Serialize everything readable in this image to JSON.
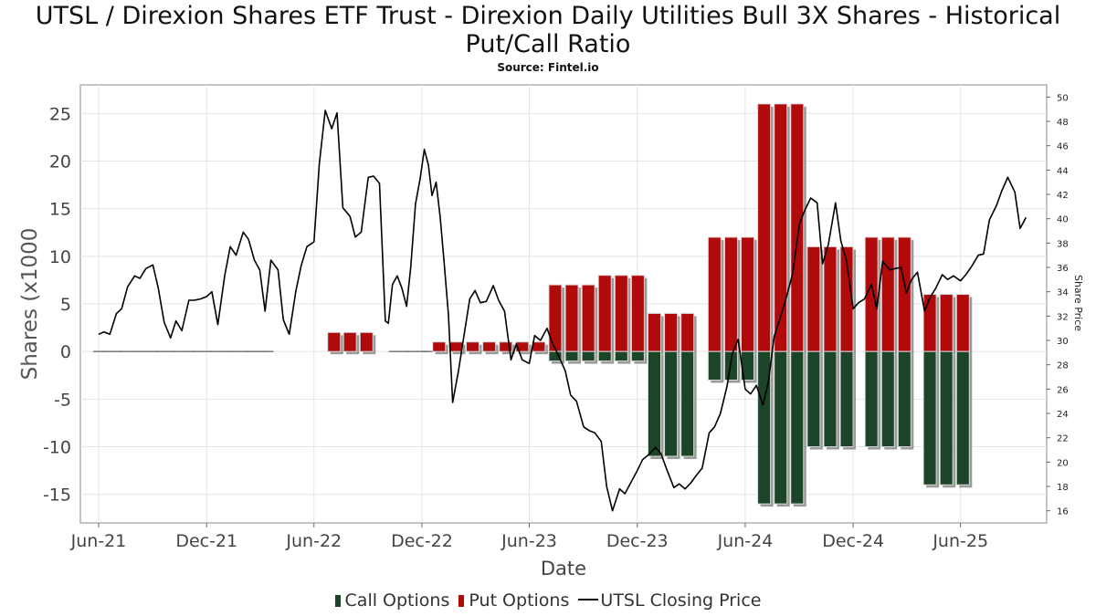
{
  "title": "UTSL / Direxion Shares ETF Trust - Direxion Daily Utilities Bull 3X Shares - Historical Put/Call Ratio",
  "subtitle": "Source: Fintel.io",
  "colors": {
    "call": "#1c4428",
    "put": "#b00a0a",
    "price": "#000000",
    "zero": "#777777"
  },
  "legend": {
    "call": "Call Options",
    "put": "Put Options",
    "price": "UTSL Closing Price"
  },
  "chart_data": {
    "type": "bar",
    "xlabel": "Date",
    "ylabel": "Shares (x1000",
    "y2label": "Share Price",
    "xlim": [
      "2021-05-01",
      "2025-10-25"
    ],
    "ylim": [
      -18,
      28
    ],
    "y2lim": [
      15,
      51
    ],
    "xticks": [
      "2021-06-01",
      "2021-12-01",
      "2022-06-01",
      "2022-12-01",
      "2023-06-01",
      "2023-12-01",
      "2024-06-01",
      "2024-12-01",
      "2025-06-01"
    ],
    "xtick_labels": [
      "Jun-21",
      "Dec-21",
      "Jun-22",
      "Dec-22",
      "Jun-23",
      "Dec-23",
      "Jun-24",
      "Dec-24",
      "Jun-25"
    ],
    "yticks": [
      -15,
      -10,
      -5,
      0,
      5,
      10,
      15,
      20,
      25
    ],
    "ytick_labels": [
      "-15",
      "-10",
      "-5",
      "0",
      "5",
      "10",
      "15",
      "20",
      "25"
    ],
    "y2ticks": [
      16,
      18,
      20,
      22,
      24,
      26,
      28,
      30,
      32,
      34,
      36,
      38,
      40,
      42,
      44,
      46,
      48,
      50
    ],
    "y2tick_labels": [
      "16",
      "18",
      "20",
      "22",
      "24",
      "26",
      "28",
      "30",
      "32",
      "34",
      "36",
      "38",
      "40",
      "42",
      "44",
      "46",
      "48",
      "50"
    ],
    "grid": true,
    "legend_position": "bottom",
    "series": [
      {
        "name": "Put Options",
        "type": "bar",
        "points": [
          [
            "2021-06-01",
            0
          ],
          [
            "2021-06-15",
            0
          ],
          [
            "2021-07-01",
            0
          ],
          [
            "2021-07-15",
            0
          ],
          [
            "2021-08-01",
            0
          ],
          [
            "2021-08-15",
            0
          ],
          [
            "2021-09-01",
            0
          ],
          [
            "2021-09-15",
            0
          ],
          [
            "2021-10-01",
            0
          ],
          [
            "2021-10-15",
            0
          ],
          [
            "2021-11-01",
            0
          ],
          [
            "2021-11-15",
            0
          ],
          [
            "2021-12-01",
            0
          ],
          [
            "2021-12-15",
            0
          ],
          [
            "2022-01-01",
            0
          ],
          [
            "2022-01-15",
            0
          ],
          [
            "2022-02-01",
            0
          ],
          [
            "2022-02-15",
            0
          ],
          [
            "2022-03-01",
            0
          ],
          [
            "2022-03-15",
            0
          ],
          [
            "2022-07-05",
            2
          ],
          [
            "2022-08-01",
            2
          ],
          [
            "2022-08-29",
            2
          ],
          [
            "2022-10-15",
            0
          ],
          [
            "2022-11-01",
            0
          ],
          [
            "2022-11-15",
            0
          ],
          [
            "2022-12-01",
            0
          ],
          [
            "2022-12-10",
            0
          ],
          [
            "2022-12-30",
            1
          ],
          [
            "2023-01-28",
            1
          ],
          [
            "2023-02-25",
            1
          ],
          [
            "2023-03-25",
            1
          ],
          [
            "2023-04-22",
            1
          ],
          [
            "2023-05-20",
            1
          ],
          [
            "2023-06-17",
            1
          ],
          [
            "2023-07-15",
            7
          ],
          [
            "2023-08-12",
            7
          ],
          [
            "2023-09-09",
            7
          ],
          [
            "2023-10-07",
            8
          ],
          [
            "2023-11-04",
            8
          ],
          [
            "2023-12-02",
            8
          ],
          [
            "2023-12-30",
            4
          ],
          [
            "2024-01-27",
            4
          ],
          [
            "2024-02-24",
            4
          ],
          [
            "2024-04-10",
            12
          ],
          [
            "2024-05-08",
            12
          ],
          [
            "2024-06-05",
            12
          ],
          [
            "2024-07-03",
            26
          ],
          [
            "2024-07-31",
            26
          ],
          [
            "2024-08-28",
            26
          ],
          [
            "2024-09-25",
            11
          ],
          [
            "2024-10-23",
            11
          ],
          [
            "2024-11-20",
            11
          ],
          [
            "2025-01-01",
            12
          ],
          [
            "2025-01-29",
            12
          ],
          [
            "2025-02-26",
            12
          ],
          [
            "2025-04-10",
            6
          ],
          [
            "2025-05-08",
            6
          ],
          [
            "2025-06-05",
            6
          ]
        ]
      },
      {
        "name": "Call Options",
        "type": "bar",
        "points": [
          [
            "2023-07-15",
            -1
          ],
          [
            "2023-08-12",
            -1
          ],
          [
            "2023-09-09",
            -1
          ],
          [
            "2023-10-07",
            -1
          ],
          [
            "2023-11-04",
            -1
          ],
          [
            "2023-12-02",
            -1
          ],
          [
            "2023-12-30",
            -11
          ],
          [
            "2024-01-27",
            -11
          ],
          [
            "2024-02-24",
            -11
          ],
          [
            "2024-04-10",
            -3
          ],
          [
            "2024-05-08",
            -3
          ],
          [
            "2024-06-05",
            -3
          ],
          [
            "2024-07-03",
            -16
          ],
          [
            "2024-07-31",
            -16
          ],
          [
            "2024-08-28",
            -16
          ],
          [
            "2024-09-25",
            -10
          ],
          [
            "2024-10-23",
            -10
          ],
          [
            "2024-11-20",
            -10
          ],
          [
            "2025-01-01",
            -10
          ],
          [
            "2025-01-29",
            -10
          ],
          [
            "2025-02-26",
            -10
          ],
          [
            "2025-04-10",
            -14
          ],
          [
            "2025-05-08",
            -14
          ],
          [
            "2025-06-05",
            -14
          ]
        ]
      },
      {
        "name": "UTSL Closing Price",
        "type": "line",
        "axis": "right",
        "points": [
          [
            "2021-06-01",
            30.5
          ],
          [
            "2021-06-10",
            30.7
          ],
          [
            "2021-06-20",
            30.5
          ],
          [
            "2021-07-01",
            32.2
          ],
          [
            "2021-07-10",
            32.6
          ],
          [
            "2021-07-20",
            34.4
          ],
          [
            "2021-08-01",
            35.3
          ],
          [
            "2021-08-10",
            35.1
          ],
          [
            "2021-08-20",
            35.9
          ],
          [
            "2021-09-01",
            36.2
          ],
          [
            "2021-09-10",
            34.3
          ],
          [
            "2021-09-20",
            31.5
          ],
          [
            "2021-10-01",
            30.2
          ],
          [
            "2021-10-10",
            31.6
          ],
          [
            "2021-10-20",
            30.8
          ],
          [
            "2021-11-01",
            33.3
          ],
          [
            "2021-11-10",
            33.3
          ],
          [
            "2021-11-20",
            33.4
          ],
          [
            "2021-12-01",
            33.6
          ],
          [
            "2021-12-10",
            34.0
          ],
          [
            "2021-12-20",
            31.3
          ],
          [
            "2022-01-01",
            35.4
          ],
          [
            "2022-01-10",
            37.7
          ],
          [
            "2022-01-20",
            37.0
          ],
          [
            "2022-02-01",
            38.9
          ],
          [
            "2022-02-10",
            38.3
          ],
          [
            "2022-02-20",
            36.6
          ],
          [
            "2022-03-01",
            35.8
          ],
          [
            "2022-03-10",
            32.4
          ],
          [
            "2022-03-20",
            36.6
          ],
          [
            "2022-04-01",
            35.8
          ],
          [
            "2022-04-10",
            31.7
          ],
          [
            "2022-04-20",
            30.5
          ],
          [
            "2022-05-01",
            34.0
          ],
          [
            "2022-05-10",
            36.1
          ],
          [
            "2022-05-20",
            37.7
          ],
          [
            "2022-06-01",
            38.1
          ],
          [
            "2022-06-10",
            44.5
          ],
          [
            "2022-06-20",
            48.9
          ],
          [
            "2022-07-01",
            47.4
          ],
          [
            "2022-07-10",
            48.7
          ],
          [
            "2022-07-20",
            40.9
          ],
          [
            "2022-08-01",
            40.2
          ],
          [
            "2022-08-10",
            38.5
          ],
          [
            "2022-08-20",
            38.9
          ],
          [
            "2022-09-01",
            43.4
          ],
          [
            "2022-09-10",
            43.5
          ],
          [
            "2022-09-20",
            42.9
          ],
          [
            "2022-09-30",
            31.6
          ],
          [
            "2022-10-05",
            31.4
          ],
          [
            "2022-10-12",
            34.6
          ],
          [
            "2022-10-20",
            35.3
          ],
          [
            "2022-10-28",
            34.3
          ],
          [
            "2022-11-05",
            32.8
          ],
          [
            "2022-11-12",
            36.0
          ],
          [
            "2022-11-20",
            41.2
          ],
          [
            "2022-11-28",
            43.3
          ],
          [
            "2022-12-05",
            45.7
          ],
          [
            "2022-12-12",
            44.4
          ],
          [
            "2022-12-18",
            41.9
          ],
          [
            "2022-12-25",
            43.0
          ],
          [
            "2023-01-01",
            40.1
          ],
          [
            "2023-01-08",
            36.2
          ],
          [
            "2023-01-15",
            32.1
          ],
          [
            "2023-01-22",
            24.9
          ],
          [
            "2023-02-01",
            27.5
          ],
          [
            "2023-02-10",
            30.3
          ],
          [
            "2023-02-20",
            33.4
          ],
          [
            "2023-03-01",
            34.1
          ],
          [
            "2023-03-10",
            33.1
          ],
          [
            "2023-03-20",
            33.2
          ],
          [
            "2023-04-01",
            34.5
          ],
          [
            "2023-04-10",
            33.3
          ],
          [
            "2023-04-20",
            32.4
          ],
          [
            "2023-05-01",
            28.4
          ],
          [
            "2023-05-10",
            29.7
          ],
          [
            "2023-05-20",
            28.4
          ],
          [
            "2023-06-01",
            28.1
          ],
          [
            "2023-06-10",
            30.4
          ],
          [
            "2023-06-20",
            30.0
          ],
          [
            "2023-07-01",
            31.0
          ],
          [
            "2023-07-10",
            29.8
          ],
          [
            "2023-07-20",
            28.8
          ],
          [
            "2023-08-01",
            27.5
          ],
          [
            "2023-08-10",
            25.5
          ],
          [
            "2023-08-20",
            25.0
          ],
          [
            "2023-09-01",
            22.9
          ],
          [
            "2023-09-10",
            22.6
          ],
          [
            "2023-09-20",
            22.4
          ],
          [
            "2023-10-01",
            21.7
          ],
          [
            "2023-10-10",
            18.0
          ],
          [
            "2023-10-20",
            16.0
          ],
          [
            "2023-11-01",
            17.8
          ],
          [
            "2023-11-10",
            17.4
          ],
          [
            "2023-11-20",
            18.3
          ],
          [
            "2023-12-01",
            19.3
          ],
          [
            "2023-12-10",
            20.2
          ],
          [
            "2023-12-20",
            20.6
          ],
          [
            "2024-01-01",
            21.2
          ],
          [
            "2024-01-10",
            20.7
          ],
          [
            "2024-01-20",
            19.4
          ],
          [
            "2024-02-01",
            17.9
          ],
          [
            "2024-02-10",
            18.2
          ],
          [
            "2024-02-20",
            17.8
          ],
          [
            "2024-03-01",
            18.3
          ],
          [
            "2024-03-10",
            18.9
          ],
          [
            "2024-03-20",
            19.5
          ],
          [
            "2024-04-01",
            22.4
          ],
          [
            "2024-04-10",
            22.9
          ],
          [
            "2024-04-20",
            24.0
          ],
          [
            "2024-05-01",
            26.2
          ],
          [
            "2024-05-10",
            28.9
          ],
          [
            "2024-05-20",
            30.1
          ],
          [
            "2024-06-01",
            26.0
          ],
          [
            "2024-06-10",
            25.6
          ],
          [
            "2024-06-20",
            26.3
          ],
          [
            "2024-07-01",
            24.7
          ],
          [
            "2024-07-10",
            26.5
          ],
          [
            "2024-07-20",
            30.3
          ],
          [
            "2024-08-01",
            32.1
          ],
          [
            "2024-08-10",
            33.6
          ],
          [
            "2024-08-20",
            35.4
          ],
          [
            "2024-09-01",
            39.6
          ],
          [
            "2024-09-10",
            40.7
          ],
          [
            "2024-09-20",
            41.7
          ],
          [
            "2024-10-01",
            41.3
          ],
          [
            "2024-10-10",
            36.3
          ],
          [
            "2024-10-20",
            37.9
          ],
          [
            "2024-11-01",
            41.3
          ],
          [
            "2024-11-10",
            38.2
          ],
          [
            "2024-11-20",
            36.5
          ],
          [
            "2024-12-01",
            32.6
          ],
          [
            "2024-12-10",
            33.1
          ],
          [
            "2024-12-20",
            33.4
          ],
          [
            "2025-01-01",
            34.6
          ],
          [
            "2025-01-10",
            32.6
          ],
          [
            "2025-01-20",
            36.5
          ],
          [
            "2025-02-01",
            35.8
          ],
          [
            "2025-02-10",
            35.9
          ],
          [
            "2025-02-20",
            36.0
          ],
          [
            "2025-03-01",
            33.9
          ],
          [
            "2025-03-10",
            35.0
          ],
          [
            "2025-03-20",
            35.6
          ],
          [
            "2025-04-01",
            32.4
          ],
          [
            "2025-04-10",
            33.5
          ],
          [
            "2025-04-20",
            34.3
          ],
          [
            "2025-05-01",
            35.4
          ],
          [
            "2025-05-10",
            35.0
          ],
          [
            "2025-05-20",
            35.3
          ],
          [
            "2025-06-01",
            34.9
          ],
          [
            "2025-06-10",
            35.4
          ],
          [
            "2025-06-20",
            36.1
          ],
          [
            "2025-07-01",
            37.0
          ],
          [
            "2025-07-10",
            37.1
          ],
          [
            "2025-07-20",
            39.9
          ],
          [
            "2025-08-01",
            41.1
          ],
          [
            "2025-08-10",
            42.3
          ],
          [
            "2025-08-20",
            43.4
          ],
          [
            "2025-09-01",
            42.2
          ],
          [
            "2025-09-10",
            39.2
          ],
          [
            "2025-09-20",
            40.1
          ]
        ]
      }
    ]
  }
}
